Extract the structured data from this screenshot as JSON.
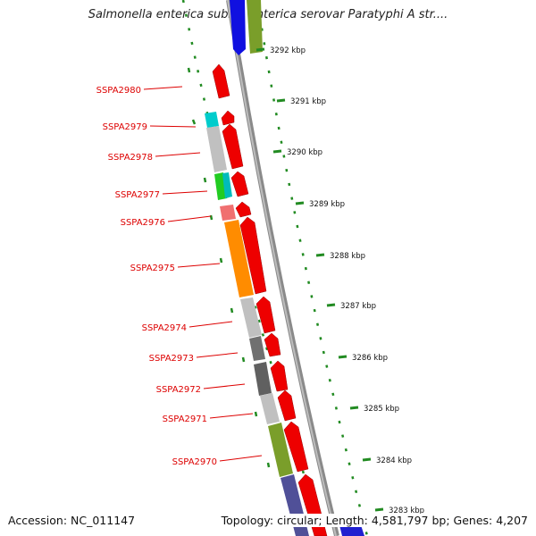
{
  "title": "Salmonella enterica subsp. enterica serovar Paratyphi A str....",
  "footer": {
    "accession": "Accession: NC_011147",
    "summary": "Topology: circular; Length: 4,581,797 bp; Genes: 4,207"
  },
  "scale_ticks": [
    "3292 kbp",
    "3291 kbp",
    "3290 kbp",
    "3289 kbp",
    "3288 kbp",
    "3287 kbp",
    "3286 kbp",
    "3285 kbp",
    "3284 kbp",
    "3283 kbp"
  ],
  "gene_labels": [
    "SSPA2980",
    "SSPA2979",
    "SSPA2978",
    "SSPA2977",
    "SSPA2976",
    "SSPA2975",
    "SSPA2974",
    "SSPA2973",
    "SSPA2972",
    "SSPA2971",
    "SSPA2970"
  ],
  "colors": {
    "label_text": "#dd0000",
    "gene_arrow": "#ee0000",
    "tick_green": "#228b22",
    "backbone": "#777777"
  }
}
